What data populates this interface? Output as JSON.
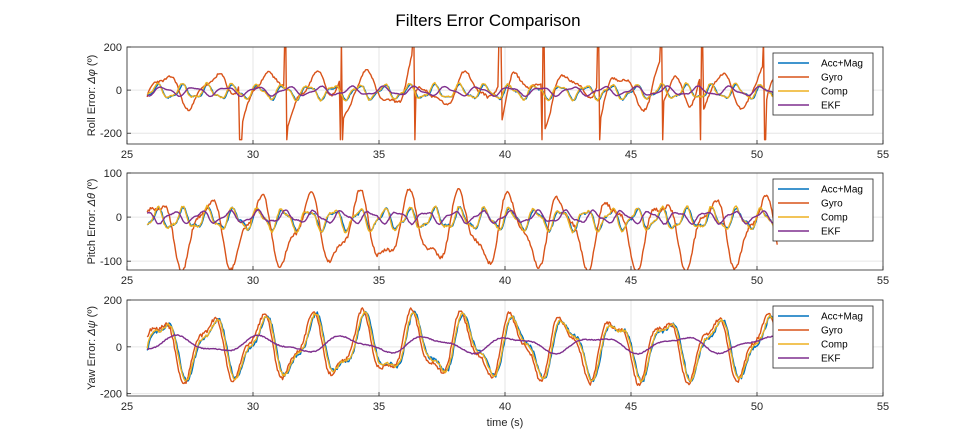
{
  "chart_data": [
    {
      "type": "line",
      "title": "Filters Error Comparison",
      "xlabel": "",
      "ylabel_prefix": "Roll Error: ",
      "ylabel_symbol": "Δφ",
      "ylabel_unit": " (º)",
      "xlim": [
        25,
        55
      ],
      "ylim": [
        -250,
        200
      ],
      "xticks": [
        25,
        30,
        35,
        40,
        45,
        50,
        55
      ],
      "yticks": [
        -200,
        0,
        200
      ],
      "grid": true,
      "legend_position": "right",
      "series": [
        {
          "name": "Acc+Mag",
          "color": "#0072BD",
          "amp": 28,
          "freq": 1.0,
          "phase": 0.2,
          "offset": -10,
          "jitter": 6,
          "seed": 11
        },
        {
          "name": "Gyro",
          "color": "#D95319",
          "amp": 70,
          "freq": 0.5,
          "phase": 0.0,
          "offset": 0,
          "jitter": 10,
          "seed": 23,
          "spikes": [
            29.5,
            31.3,
            33.5,
            36.4,
            39.8,
            41.5,
            43.7,
            46.2,
            47.8,
            50.3
          ]
        },
        {
          "name": "Comp",
          "color": "#EDB120",
          "amp": 30,
          "freq": 1.0,
          "phase": 0.4,
          "offset": -8,
          "jitter": 7,
          "seed": 37
        },
        {
          "name": "EKF",
          "color": "#7E2F8E",
          "amp": 18,
          "freq": 0.8,
          "phase": 0.7,
          "offset": -5,
          "jitter": 2,
          "seed": 41
        }
      ]
    },
    {
      "type": "line",
      "xlabel": "",
      "ylabel_prefix": "Pitch Error: ",
      "ylabel_symbol": "Δθ",
      "ylabel_unit": " (º)",
      "xlim": [
        25,
        55
      ],
      "ylim": [
        -120,
        100
      ],
      "xticks": [
        25,
        30,
        35,
        40,
        45,
        50,
        55
      ],
      "yticks": [
        -100,
        0,
        100
      ],
      "grid": true,
      "legend_position": "right",
      "series": [
        {
          "name": "Acc+Mag",
          "color": "#0072BD",
          "amp": 20,
          "freq": 1.0,
          "phase": 0.1,
          "offset": -5,
          "jitter": 5,
          "seed": 53
        },
        {
          "name": "Gyro",
          "color": "#D95319",
          "amp": 70,
          "freq": 0.5,
          "phase": 0.9,
          "offset": -30,
          "jitter": 8,
          "seed": 61
        },
        {
          "name": "Comp",
          "color": "#EDB120",
          "amp": 22,
          "freq": 1.0,
          "phase": 0.3,
          "offset": -5,
          "jitter": 5,
          "seed": 71
        },
        {
          "name": "EKF",
          "color": "#7E2F8E",
          "amp": 12,
          "freq": 0.9,
          "phase": 0.5,
          "offset": 0,
          "jitter": 2,
          "seed": 79
        }
      ]
    },
    {
      "type": "line",
      "xlabel": "time (s)",
      "ylabel_prefix": "Yaw Error: ",
      "ylabel_symbol": "Δψ",
      "ylabel_unit": " (º)",
      "xlim": [
        25,
        55
      ],
      "ylim": [
        -210,
        200
      ],
      "xticks": [
        25,
        30,
        35,
        40,
        45,
        50,
        55
      ],
      "yticks": [
        -200,
        0,
        200
      ],
      "grid": true,
      "legend_position": "right",
      "series": [
        {
          "name": "Acc+Mag",
          "color": "#0072BD",
          "amp": 110,
          "freq": 0.5,
          "phase": 0.2,
          "offset": 0,
          "jitter": 15,
          "seed": 83
        },
        {
          "name": "Gyro",
          "color": "#D95319",
          "amp": 120,
          "freq": 0.5,
          "phase": 0.6,
          "offset": 0,
          "jitter": 15,
          "seed": 89
        },
        {
          "name": "Comp",
          "color": "#EDB120",
          "amp": 110,
          "freq": 0.5,
          "phase": 0.3,
          "offset": 0,
          "jitter": 12,
          "seed": 97
        },
        {
          "name": "EKF",
          "color": "#7E2F8E",
          "amp": 30,
          "freq": 0.3,
          "phase": 1.0,
          "offset": 10,
          "jitter": 4,
          "seed": 101
        }
      ]
    }
  ],
  "x_start": 25.8,
  "x_end": 50.8
}
